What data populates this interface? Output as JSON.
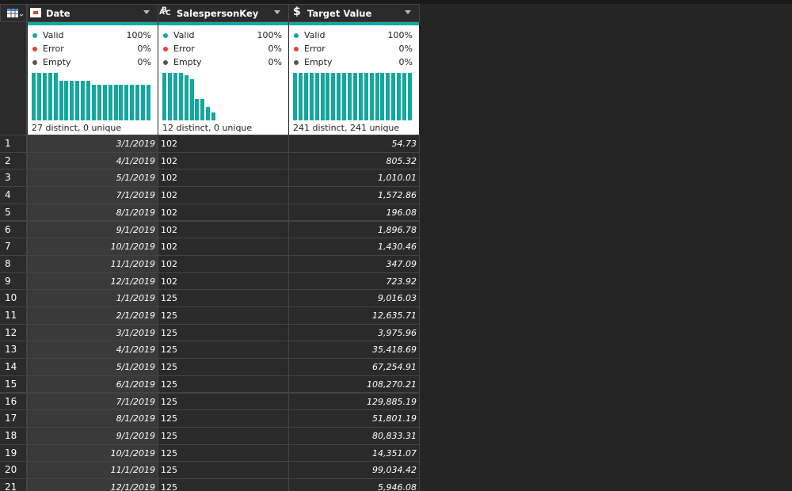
{
  "columns": [
    {
      "name": "Date",
      "align": "right",
      "italic": true,
      "stats": [
        {
          "label": "Valid",
          "value": "100%"
        },
        {
          "label": "Error",
          "value": "0%"
        },
        {
          "label": "Empty",
          "value": "0%"
        }
      ],
      "distribution": [
        12,
        12,
        12,
        12,
        12,
        10,
        10,
        10,
        10,
        10,
        10,
        9,
        9,
        9,
        9,
        9,
        9,
        9,
        9,
        9,
        9,
        9
      ],
      "summary": "27 distinct, 0 unique"
    },
    {
      "name": "SalespersonKey",
      "align": "left",
      "italic": false,
      "type_icon": [
        "A",
        "B",
        "C"
      ],
      "stats": [
        {
          "label": "Valid",
          "value": "100%"
        },
        {
          "label": "Error",
          "value": "0%"
        },
        {
          "label": "Empty",
          "value": "0%"
        }
      ],
      "distribution": [
        24,
        24,
        24,
        24,
        23,
        21,
        11,
        11,
        7,
        4
      ],
      "summary": "12 distinct, 0 unique"
    },
    {
      "name": "Target Value",
      "align": "right",
      "italic": true,
      "type_icon": [
        "$"
      ],
      "stats": [
        {
          "label": "Valid",
          "value": "100%"
        },
        {
          "label": "Error",
          "value": "0%"
        },
        {
          "label": "Empty",
          "value": "0%"
        }
      ],
      "distribution": [
        1,
        1,
        1,
        1,
        1,
        1,
        1,
        1,
        1,
        1,
        1,
        1,
        1,
        1,
        1,
        1,
        1,
        1,
        1,
        1,
        1,
        1
      ],
      "summary": "241 distinct, 241 unique"
    }
  ],
  "rows": [
    [
      "1",
      "3/1/2019",
      "102",
      "54.73"
    ],
    [
      "2",
      "4/1/2019",
      "102",
      "805.32"
    ],
    [
      "3",
      "5/1/2019",
      "102",
      "1,010.01"
    ],
    [
      "4",
      "7/1/2019",
      "102",
      "1,572.86"
    ],
    [
      "5",
      "8/1/2019",
      "102",
      "196.08"
    ],
    [
      "6",
      "9/1/2019",
      "102",
      "1,896.78"
    ],
    [
      "7",
      "10/1/2019",
      "102",
      "1,430.46"
    ],
    [
      "8",
      "11/1/2019",
      "102",
      "347.09"
    ],
    [
      "9",
      "12/1/2019",
      "102",
      "723.92"
    ],
    [
      "10",
      "1/1/2019",
      "125",
      "9,016.03"
    ],
    [
      "11",
      "2/1/2019",
      "125",
      "12,635.71"
    ],
    [
      "12",
      "3/1/2019",
      "125",
      "3,975.96"
    ],
    [
      "13",
      "4/1/2019",
      "125",
      "35,418.69"
    ],
    [
      "14",
      "5/1/2019",
      "125",
      "67,254.91"
    ],
    [
      "15",
      "6/1/2019",
      "125",
      "108,270.21"
    ],
    [
      "16",
      "7/1/2019",
      "125",
      "129,885.19"
    ],
    [
      "17",
      "8/1/2019",
      "125",
      "51,801.19"
    ],
    [
      "18",
      "9/1/2019",
      "125",
      "80,833.31"
    ],
    [
      "19",
      "10/1/2019",
      "125",
      "14,351.07"
    ],
    [
      "20",
      "11/1/2019",
      "125",
      "99,034.42"
    ],
    [
      "21",
      "12/1/2019",
      "125",
      "5,946.08"
    ]
  ]
}
